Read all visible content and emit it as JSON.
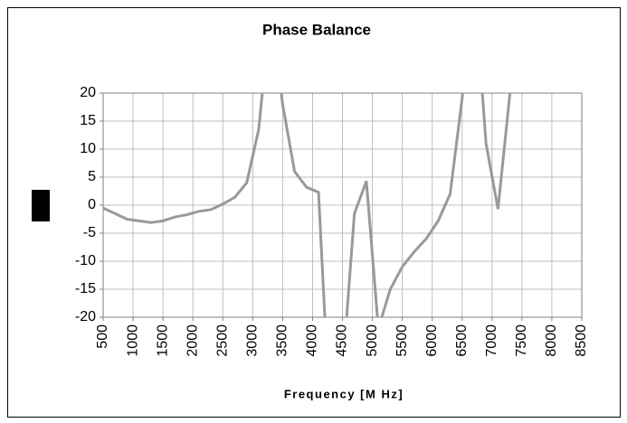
{
  "chart_data": {
    "type": "line",
    "title": "Phase Balance",
    "x_label": "Frequency [M Hz]",
    "x": [
      500,
      700,
      900,
      1300,
      1500,
      1700,
      1900,
      2100,
      2300,
      2500,
      2700,
      2900,
      3100,
      3300,
      3500,
      3700,
      3900,
      4100,
      4300,
      4500,
      4700,
      4900,
      5100,
      5300,
      5500,
      5700,
      5900,
      6100,
      6300,
      6500,
      6700,
      6900,
      7100,
      7300
    ],
    "series": [
      {
        "name": "Phase Balance",
        "color": "#999999",
        "values": [
          -0.5,
          -1.5,
          -2.5,
          -3.1,
          -2.8,
          -2.1,
          -1.7,
          -1.1,
          -0.8,
          0.2,
          1.4,
          4,
          13.5,
          35,
          18,
          6,
          3.2,
          2.3,
          -40,
          -30,
          -1.5,
          4.3,
          -22,
          -15,
          -11,
          -8.3,
          -6,
          -2.8,
          2,
          19,
          40,
          11,
          -0.7,
          20
        ]
      }
    ],
    "xlim": [
      500,
      8500
    ],
    "xticks": [
      500,
      1000,
      1500,
      2000,
      2500,
      3000,
      3500,
      4000,
      4500,
      5000,
      5500,
      6000,
      6500,
      7000,
      7500,
      8000,
      8500
    ],
    "ylim": [
      -20,
      20
    ],
    "yticks": [
      -20,
      -15,
      -10,
      -5,
      0,
      5,
      10,
      15,
      20
    ],
    "grid": true
  }
}
